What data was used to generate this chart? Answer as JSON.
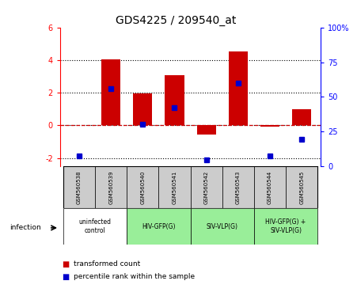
{
  "title": "GDS4225 / 209540_at",
  "samples": [
    "GSM560538",
    "GSM560539",
    "GSM560540",
    "GSM560541",
    "GSM560542",
    "GSM560543",
    "GSM560544",
    "GSM560545"
  ],
  "red_bars": [
    0.0,
    4.05,
    1.95,
    3.1,
    -0.55,
    4.55,
    -0.05,
    1.0
  ],
  "blue_dots": [
    -1.85,
    2.25,
    0.05,
    1.1,
    -2.1,
    2.6,
    -1.85,
    -0.85
  ],
  "ylim_left": [
    -2.5,
    6.0
  ],
  "ylim_right": [
    0,
    100
  ],
  "yticks_left": [
    -2,
    0,
    2,
    4,
    6
  ],
  "yticks_right": [
    0,
    25,
    50,
    75,
    100
  ],
  "ytick_right_labels": [
    "0",
    "25",
    "50",
    "75",
    "100%"
  ],
  "dotted_lines": [
    -2,
    0,
    2,
    4
  ],
  "groups": [
    {
      "label": "uninfected\ncontrol",
      "start": 0,
      "end": 2,
      "color": "#ffffff"
    },
    {
      "label": "HIV-GFP(G)",
      "start": 2,
      "end": 4,
      "color": "#99ee99"
    },
    {
      "label": "SIV-VLP(G)",
      "start": 4,
      "end": 6,
      "color": "#99ee99"
    },
    {
      "label": "HIV-GFP(G) +\nSIV-VLP(G)",
      "start": 6,
      "end": 8,
      "color": "#99ee99"
    }
  ],
  "infection_label": "infection",
  "legend_red_label": "transformed count",
  "legend_blue_label": "percentile rank within the sample",
  "bar_color": "#cc0000",
  "dot_color": "#0000cc",
  "zero_line_color": "#cc0000",
  "sample_box_color": "#cccccc"
}
